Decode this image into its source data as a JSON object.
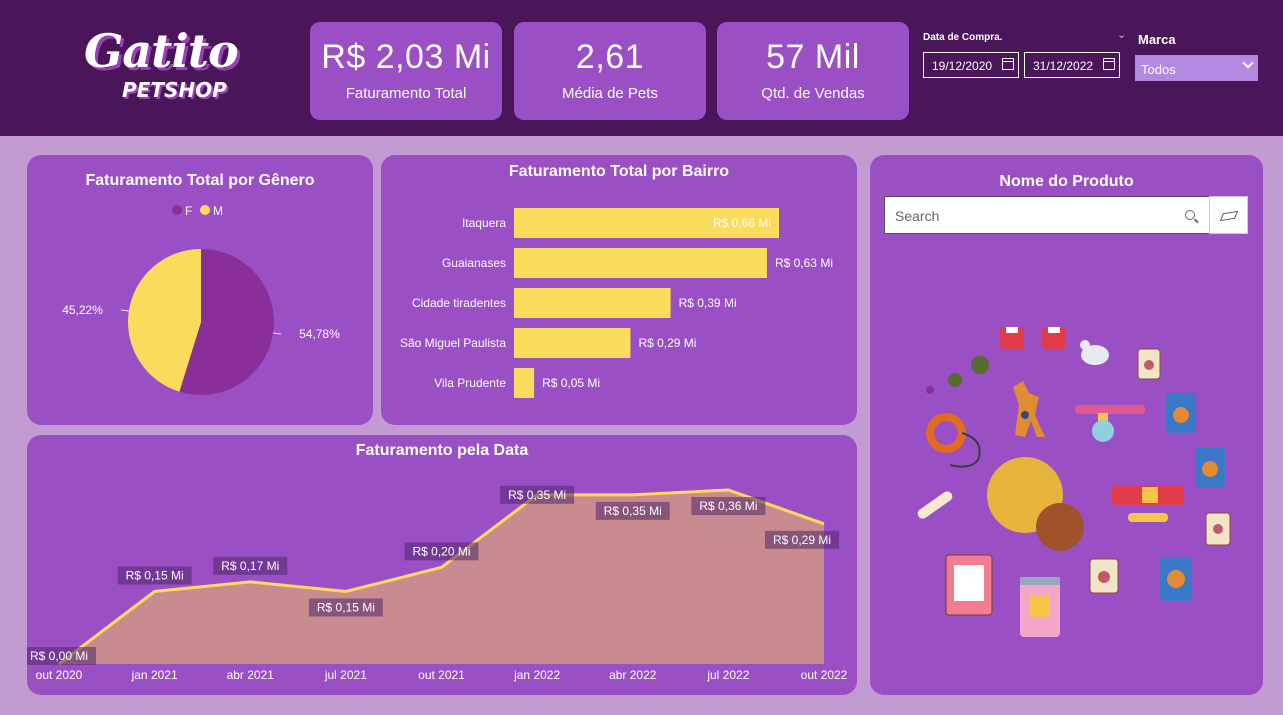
{
  "logo": {
    "line1": "Gatito",
    "line2": "PETSHOP"
  },
  "kpis": [
    {
      "value": "R$ 2,03 Mi",
      "label": "Faturamento Total"
    },
    {
      "value": "2,61",
      "label": "Média de Pets"
    },
    {
      "value": "57 Mil",
      "label": "Qtd. de Vendas"
    }
  ],
  "date_filter": {
    "label": "Data de Compra.",
    "start": "19/12/2020",
    "end": "31/12/2022"
  },
  "marca": {
    "label": "Marca",
    "selected": "Todos"
  },
  "produto": {
    "title": "Nome do Produto",
    "search_placeholder": "Search"
  },
  "colors": {
    "topbar": "#4a1559",
    "card": "#9b4fc4",
    "accent": "#f9dc5c",
    "dark_purple": "#8a2f9a",
    "background": "#c39bd3"
  },
  "icons": [
    "calendar-icon",
    "chevron-down-icon",
    "search-icon",
    "eraser-icon",
    "pet-products-illustration"
  ],
  "chart_data": [
    {
      "type": "pie",
      "title": "Faturamento Total por Gênero",
      "legend": [
        "F",
        "M"
      ],
      "legend_position": "top",
      "slices": [
        {
          "name": "F",
          "value": 54.78,
          "label": "54,78%",
          "color": "#8a2f9a"
        },
        {
          "name": "M",
          "value": 45.22,
          "label": "45,22%",
          "color": "#f9dc5c"
        }
      ]
    },
    {
      "type": "bar",
      "orientation": "horizontal",
      "title": "Faturamento Total por Bairro",
      "categories": [
        "Itaquera",
        "Guaianases",
        "Cidade tiradentes",
        "São Miguel Paulista",
        "Vila Prudente"
      ],
      "values": [
        0.66,
        0.63,
        0.39,
        0.29,
        0.05
      ],
      "labels": [
        "R$ 0,66 Mi",
        "R$ 0,63 Mi",
        "R$ 0,39 Mi",
        "R$ 0,29 Mi",
        "R$ 0,05 Mi"
      ],
      "color": "#f9dc5c"
    },
    {
      "type": "area",
      "title": "Faturamento pela Data",
      "x_ticks": [
        "out 2020",
        "jan 2021",
        "abr 2021",
        "jul 2021",
        "out 2021",
        "jan 2022",
        "abr 2022",
        "jul 2022",
        "out 2022"
      ],
      "values": [
        0.0,
        0.15,
        0.17,
        0.15,
        0.2,
        0.35,
        0.35,
        0.36,
        0.29
      ],
      "labels": [
        "R$ 0,00 Mi",
        "R$ 0,15 Mi",
        "R$ 0,17 Mi",
        "R$ 0,15 Mi",
        "R$ 0,20 Mi",
        "R$ 0,35 Mi",
        "R$ 0,35 Mi",
        "R$ 0,36 Mi",
        "R$ 0,29 Mi"
      ],
      "ylim": [
        0,
        0.36
      ],
      "line_color": "#f9dc5c",
      "fill_color": "#c98b8f"
    }
  ]
}
